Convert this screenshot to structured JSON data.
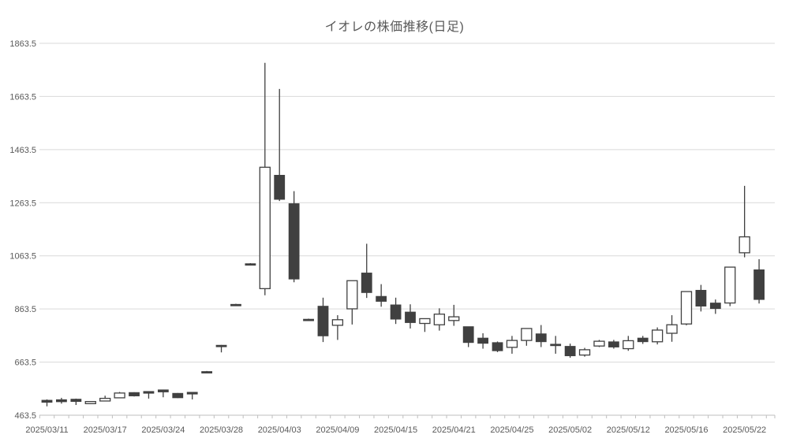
{
  "title": "イオレの株価推移(日足)",
  "colors": {
    "background": "#ffffff",
    "grid": "#d9d9d9",
    "axis_line": "#bfbfbf",
    "tick": "#bfbfbf",
    "label_text": "#595959",
    "title_text": "#595959",
    "up_fill": "#ffffff",
    "down_fill": "#404040",
    "outline": "#404040",
    "wick": "#404040"
  },
  "chart_data": {
    "type": "candlestick",
    "title": "イオレの株価推移(日足)",
    "xlabel": "",
    "ylabel": "",
    "ylim": [
      463.5,
      1863.5
    ],
    "y_ticks": [
      463.5,
      663.5,
      863.5,
      1063.5,
      1263.5,
      1463.5,
      1663.5,
      1863.5
    ],
    "grid": "horizontal",
    "legend": "none",
    "x_label_every": 4,
    "visible_x_labels": [
      "2025/03/11",
      "2025/03/17",
      "2025/03/24",
      "2025/03/28",
      "2025/04/03",
      "2025/04/09",
      "2025/04/15",
      "2025/04/21",
      "2025/04/25",
      "2025/05/02",
      "2025/05/12",
      "2025/05/16",
      "2025/05/22"
    ],
    "columns": [
      "date",
      "open",
      "high",
      "low",
      "close"
    ],
    "ohlc": [
      [
        "2025/03/11",
        520,
        523,
        497,
        512
      ],
      [
        "2025/03/12",
        522,
        529,
        507,
        514
      ],
      [
        "2025/03/13",
        524,
        526,
        502,
        515
      ],
      [
        "2025/03/14",
        507,
        516,
        505,
        515
      ],
      [
        "2025/03/17",
        517,
        537,
        516,
        527
      ],
      [
        "2025/03/18",
        529,
        551,
        528,
        547
      ],
      [
        "2025/03/19",
        549,
        550,
        534,
        536
      ],
      [
        "2025/03/21",
        553,
        554,
        526,
        546
      ],
      [
        "2025/03/24",
        559,
        560,
        531,
        551
      ],
      [
        "2025/03/25",
        546,
        547,
        528,
        529
      ],
      [
        "2025/03/26",
        550,
        551,
        523,
        543
      ],
      [
        "2025/03/27",
        628,
        630,
        626,
        628
      ],
      [
        "2025/03/28",
        727,
        728,
        700,
        727
      ],
      [
        "2025/03/31",
        881,
        883,
        879,
        881
      ],
      [
        "2025/04/01",
        1034,
        1036,
        1032,
        1034
      ],
      [
        "2025/04/02",
        940,
        1790,
        915,
        1397
      ],
      [
        "2025/04/03",
        1367,
        1692,
        1270,
        1276
      ],
      [
        "2025/04/04",
        1260,
        1307,
        964,
        976
      ],
      [
        "2025/04/07",
        825,
        827,
        823,
        825
      ],
      [
        "2025/04/08",
        874,
        906,
        739,
        762
      ],
      [
        "2025/04/09",
        802,
        840,
        747,
        823
      ],
      [
        "2025/04/10",
        864,
        970,
        805,
        970
      ],
      [
        "2025/04/11",
        999,
        1109,
        905,
        925
      ],
      [
        "2025/04/14",
        911,
        957,
        872,
        892
      ],
      [
        "2025/04/15",
        879,
        906,
        807,
        825
      ],
      [
        "2025/04/16",
        852,
        881,
        790,
        812
      ],
      [
        "2025/04/17",
        809,
        827,
        777,
        827
      ],
      [
        "2025/04/18",
        804,
        866,
        782,
        844
      ],
      [
        "2025/04/21",
        820,
        879,
        800,
        834
      ],
      [
        "2025/04/22",
        797,
        797,
        720,
        737
      ],
      [
        "2025/04/23",
        754,
        772,
        714,
        734
      ],
      [
        "2025/04/24",
        737,
        741,
        701,
        706
      ],
      [
        "2025/04/25",
        719,
        762,
        695,
        745
      ],
      [
        "2025/04/28",
        745,
        790,
        725,
        790
      ],
      [
        "2025/04/30",
        770,
        803,
        720,
        740
      ],
      [
        "2025/05/01",
        731,
        762,
        695,
        727
      ],
      [
        "2025/05/02",
        723,
        733,
        680,
        687
      ],
      [
        "2025/05/07",
        690,
        717,
        684,
        710
      ],
      [
        "2025/05/08",
        724,
        747,
        720,
        742
      ],
      [
        "2025/05/09",
        740,
        747,
        714,
        720
      ],
      [
        "2025/05/12",
        714,
        762,
        706,
        744
      ],
      [
        "2025/05/13",
        754,
        762,
        732,
        740
      ],
      [
        "2025/05/14",
        740,
        794,
        730,
        784
      ],
      [
        "2025/05/15",
        772,
        840,
        740,
        804
      ],
      [
        "2025/05/16",
        807,
        930,
        802,
        929
      ],
      [
        "2025/05/19",
        934,
        954,
        854,
        874
      ],
      [
        "2025/05/20",
        886,
        899,
        845,
        865
      ],
      [
        "2025/05/21",
        886,
        1021,
        874,
        1021
      ],
      [
        "2025/05/22",
        1075,
        1327,
        1058,
        1135
      ],
      [
        "2025/05/23",
        1011,
        1051,
        884,
        899
      ]
    ]
  }
}
